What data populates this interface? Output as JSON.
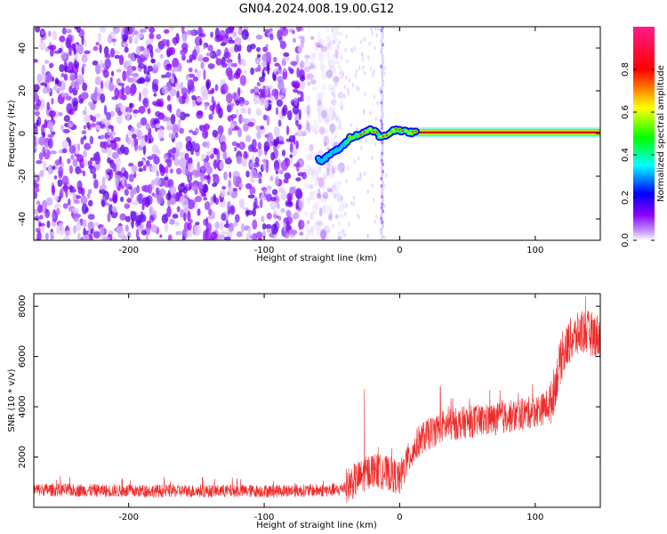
{
  "figure": {
    "title": "GN04.2024.008.19.00.G12"
  },
  "chart_data": [
    {
      "type": "heatmap",
      "title": "GN04.2024.008.19.00.G12",
      "xlabel": "Height of straight line (km)",
      "ylabel": "Frequency (Hz)",
      "xlim": [
        -270,
        148
      ],
      "ylim": [
        -50,
        50
      ],
      "xticks": [
        -200,
        -100,
        0,
        100
      ],
      "yticks": [
        -40,
        -20,
        0,
        20,
        40
      ],
      "grid": false,
      "noise_region_x": [
        -270,
        -50
      ],
      "noise_spike_x": -13,
      "signal_trace": {
        "x": [
          -60,
          -57,
          -52,
          -47,
          -42,
          -37,
          -32,
          -27,
          -22,
          -18,
          -14,
          -10,
          -6,
          -2,
          3,
          8,
          20,
          60,
          100,
          148
        ],
        "freq": [
          -12,
          -13,
          -10,
          -8,
          -6,
          -2,
          -1,
          0,
          2,
          1,
          -2,
          -1,
          1,
          2,
          1,
          0.5,
          0.5,
          0.5,
          0.5,
          0.5
        ]
      },
      "colorbar": {
        "label": "Normalized spectral amplitude",
        "ticks": [
          "0.0",
          "0.2",
          "0.4",
          "0.6",
          "0.8"
        ],
        "tick_values": [
          0,
          0.2,
          0.4,
          0.6,
          0.8
        ],
        "range": [
          0,
          1
        ],
        "colormap": [
          "#ffffff",
          "#8a00ff",
          "#0000ff",
          "#00ffff",
          "#00ff00",
          "#ffff00",
          "#ff0000",
          "#ff0080"
        ]
      }
    },
    {
      "type": "line",
      "xlabel": "Height of straight line (km)",
      "ylabel": "SNR (10 * v/v)",
      "xlim": [
        -270,
        148
      ],
      "ylim": [
        0,
        8500
      ],
      "xticks": [
        -200,
        -100,
        0,
        100
      ],
      "yticks": [
        2000,
        4000,
        6000,
        8000
      ],
      "grid": false,
      "line_color": "#ee2b2b",
      "trend": {
        "x": [
          -270,
          -200,
          -100,
          -45,
          -35,
          -20,
          -5,
          0,
          5,
          15,
          30,
          50,
          70,
          90,
          105,
          112,
          118,
          125,
          135,
          148
        ],
        "y": [
          700,
          650,
          650,
          680,
          1000,
          1500,
          1300,
          1100,
          1800,
          2700,
          3200,
          3400,
          3500,
          3700,
          3900,
          4200,
          5700,
          6600,
          7000,
          6800
        ]
      },
      "spikes": [
        {
          "x": -26,
          "y": 4700
        },
        {
          "x": 30,
          "y": 4800
        },
        {
          "x": 98,
          "y": 4900
        },
        {
          "x": 120,
          "y": 7000
        },
        {
          "x": 137,
          "y": 8400
        }
      ]
    }
  ]
}
